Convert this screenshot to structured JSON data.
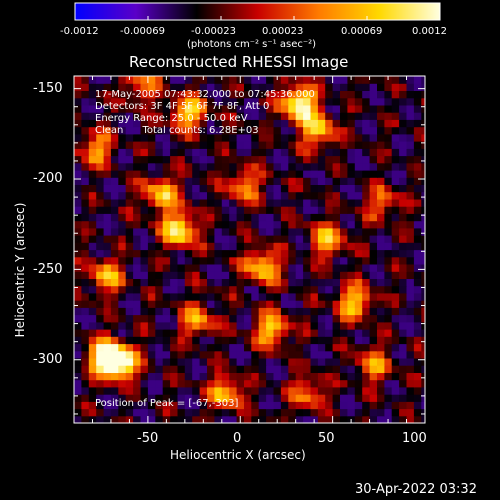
{
  "chart_data": {
    "type": "heatmap",
    "title": "Reconstructed RHESSI Image",
    "xlabel": "Heliocentric X (arcsec)",
    "ylabel": "Heliocentric Y (arcsec)",
    "xlim": [
      -90,
      100
    ],
    "ylim": [
      -335,
      -143
    ],
    "x_ticks": [
      "-50",
      "0",
      "50",
      "100"
    ],
    "y_ticks": [
      "-150",
      "-200",
      "-250",
      "-300"
    ],
    "colorbar": {
      "range": [
        -0.0012,
        0.0012
      ],
      "ticks": [
        "-0.0012",
        "-0.00069",
        "-0.00023",
        "0.00023",
        "0.00069",
        "0.0012"
      ],
      "label": "(photons cm⁻² s⁻¹ asec⁻²)",
      "colors": [
        "#0000ff",
        "#5a00c8",
        "#000000",
        "#c80000",
        "#ff7a00",
        "#ffd800",
        "#ffffe0"
      ]
    },
    "annotations": {
      "time_range": "17-May-2005 07:43:32.000 to 07:45:36.000",
      "detectors": "Detectors: 3F 4F 5F 6F 7F 8F, Att 0",
      "energy": "Energy Range: 25.0 - 50.0 keV",
      "algorithm": "Clean      Total counts: 6.28E+03",
      "peak": "Position of Peak = [-67,-303]"
    },
    "peak_position": [
      -67,
      -303
    ],
    "bright_regions": [
      {
        "x": 30,
        "y": -160,
        "v": 1.0
      },
      {
        "x": 40,
        "y": -175,
        "v": 0.7
      },
      {
        "x": -67,
        "y": -303,
        "v": 1.0
      },
      {
        "x": -75,
        "y": -300,
        "v": 0.9
      },
      {
        "x": -35,
        "y": -230,
        "v": 0.9
      },
      {
        "x": -45,
        "y": -210,
        "v": 0.7
      },
      {
        "x": -30,
        "y": -165,
        "v": 0.75
      },
      {
        "x": 10,
        "y": -250,
        "v": 0.75
      },
      {
        "x": 15,
        "y": -285,
        "v": 0.7
      },
      {
        "x": -10,
        "y": -320,
        "v": 0.65
      },
      {
        "x": 60,
        "y": -270,
        "v": 0.7
      },
      {
        "x": 45,
        "y": -235,
        "v": 0.65
      },
      {
        "x": -80,
        "y": -185,
        "v": 0.6
      },
      {
        "x": -75,
        "y": -255,
        "v": 0.65
      },
      {
        "x": 70,
        "y": -305,
        "v": 0.55
      },
      {
        "x": 0,
        "y": -205,
        "v": 0.55
      },
      {
        "x": -25,
        "y": -280,
        "v": 0.6
      },
      {
        "x": 35,
        "y": -320,
        "v": 0.5
      },
      {
        "x": 75,
        "y": -215,
        "v": 0.45
      },
      {
        "x": -55,
        "y": -150,
        "v": 0.5
      }
    ]
  },
  "footer": {
    "timestamp": "30-Apr-2022 03:32"
  }
}
